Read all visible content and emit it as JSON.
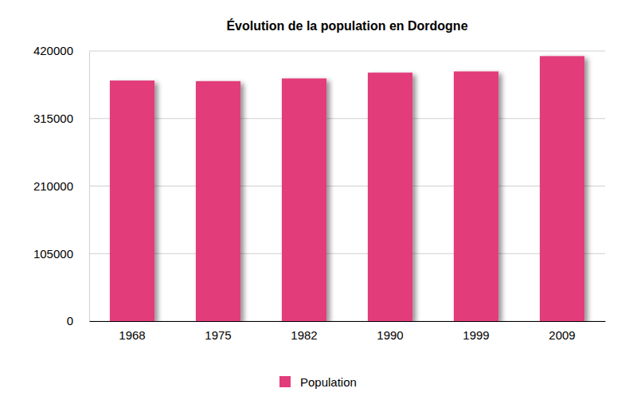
{
  "chart_data": {
    "type": "bar",
    "title": "Évolution de la population en Dordogne",
    "categories": [
      "1968",
      "1975",
      "1982",
      "1990",
      "1999",
      "2009"
    ],
    "series": [
      {
        "name": "Population",
        "color": "#e23c7a",
        "values": [
          374073,
          373179,
          377356,
          386365,
          388293,
          412082
        ]
      }
    ],
    "ylim": [
      0,
      420000
    ],
    "yticks": [
      0,
      105000,
      210000,
      315000,
      420000
    ],
    "grid": true,
    "legend": "bottom"
  }
}
